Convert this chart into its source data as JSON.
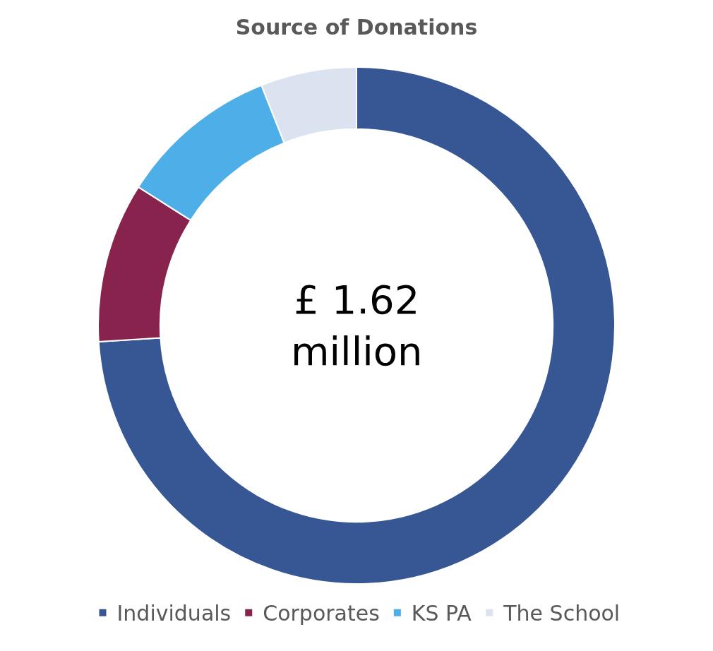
{
  "chart_data": {
    "type": "donut",
    "title": "Source of Donations",
    "categories": [
      "Individuals",
      "Corporates",
      "KS PA",
      "The School"
    ],
    "values": [
      74,
      10,
      10,
      6
    ],
    "colors": [
      "#365694",
      "#88234d",
      "#4daee8",
      "#dce3f0"
    ],
    "annotations": [
      "£ 1.62\nmillion"
    ],
    "legend": "bottom"
  }
}
